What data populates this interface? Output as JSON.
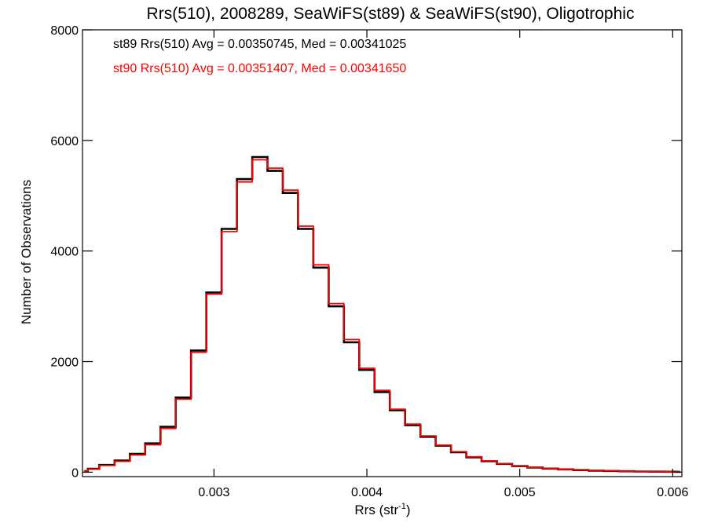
{
  "chart_data": {
    "type": "histogram-step",
    "title": "Rrs(510), 2008289, SeaWiFS(st89) & SeaWiFS(st90), Oligotrophic",
    "xlabel_main": "Rrs (str",
    "xlabel_sup": "-1",
    "xlabel_close": ")",
    "ylabel": "Number of Observations",
    "xlim": [
      0.00214,
      0.00606
    ],
    "ylim": [
      -80,
      8000
    ],
    "x_ticks": [
      {
        "value": 0.003,
        "label": "0.003"
      },
      {
        "value": 0.004,
        "label": "0.004"
      },
      {
        "value": 0.005,
        "label": "0.005"
      },
      {
        "value": 0.006,
        "label": "0.006"
      }
    ],
    "y_ticks": [
      {
        "value": 0,
        "label": "0"
      },
      {
        "value": 2000,
        "label": "2000"
      },
      {
        "value": 4000,
        "label": "4000"
      },
      {
        "value": 6000,
        "label": "6000"
      },
      {
        "value": 8000,
        "label": "8000"
      }
    ],
    "grid": false,
    "annotations": [
      {
        "text": "st89 Rrs(510) Avg = 0.00350745, Med = 0.00341025",
        "color": "#000000"
      },
      {
        "text": "st90 Rrs(510) Avg = 0.00351407, Med = 0.00341650",
        "color": "#ff0000"
      }
    ],
    "series": [
      {
        "color": "#000000",
        "x": [
          0.00215,
          0.0022,
          0.0023,
          0.0024,
          0.0025,
          0.0026,
          0.0027,
          0.0028,
          0.0029,
          0.003,
          0.0031,
          0.0032,
          0.0033,
          0.0034,
          0.0035,
          0.0036,
          0.0037,
          0.0038,
          0.0039,
          0.004,
          0.0041,
          0.0042,
          0.0043,
          0.0044,
          0.0045,
          0.0046,
          0.0047,
          0.0048,
          0.0049,
          0.005,
          0.0051,
          0.0052,
          0.0053,
          0.0054,
          0.0055,
          0.0056,
          0.0057,
          0.0058,
          0.0059,
          0.006,
          0.00605
        ],
        "y": [
          20,
          60,
          130,
          210,
          330,
          520,
          820,
          1350,
          2200,
          3250,
          4400,
          5300,
          5700,
          5450,
          5050,
          4400,
          3700,
          3000,
          2350,
          1850,
          1450,
          1120,
          850,
          640,
          480,
          360,
          270,
          200,
          150,
          110,
          85,
          65,
          50,
          38,
          28,
          22,
          17,
          13,
          10,
          8,
          6
        ]
      },
      {
        "color": "#ff0000",
        "x": [
          0.00215,
          0.0022,
          0.0023,
          0.0024,
          0.0025,
          0.0026,
          0.0027,
          0.0028,
          0.0029,
          0.003,
          0.0031,
          0.0032,
          0.0033,
          0.0034,
          0.0035,
          0.0036,
          0.0037,
          0.0038,
          0.0039,
          0.004,
          0.0041,
          0.0042,
          0.0043,
          0.0044,
          0.0045,
          0.0046,
          0.0047,
          0.0048,
          0.0049,
          0.005,
          0.0051,
          0.0052,
          0.0053,
          0.0054,
          0.0055,
          0.0056,
          0.0057,
          0.0058,
          0.0059,
          0.006,
          0.00605
        ],
        "y": [
          20,
          55,
          120,
          195,
          310,
          495,
          790,
          1320,
          2170,
          3220,
          4350,
          5250,
          5650,
          5500,
          5100,
          4450,
          3750,
          3050,
          2400,
          1880,
          1480,
          1140,
          870,
          655,
          490,
          370,
          278,
          205,
          155,
          113,
          87,
          67,
          51,
          39,
          29,
          23,
          18,
          14,
          11,
          8,
          6
        ]
      }
    ]
  }
}
